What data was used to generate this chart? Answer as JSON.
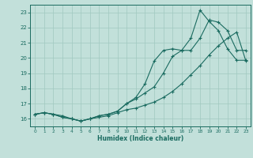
{
  "xlabel": "Humidex (Indice chaleur)",
  "bg_color": "#c2e0da",
  "grid_color": "#a0c8c0",
  "line_color": "#1a6b60",
  "xlim": [
    -0.5,
    23.5
  ],
  "ylim": [
    15.5,
    23.5
  ],
  "xticks": [
    0,
    1,
    2,
    3,
    4,
    5,
    6,
    7,
    8,
    9,
    10,
    11,
    12,
    13,
    14,
    15,
    16,
    17,
    18,
    19,
    20,
    21,
    22,
    23
  ],
  "yticks": [
    16,
    17,
    18,
    19,
    20,
    21,
    22,
    23
  ],
  "line1_x": [
    0,
    1,
    2,
    3,
    4,
    5,
    6,
    7,
    8,
    9,
    10,
    11,
    12,
    13,
    14,
    15,
    16,
    17,
    18,
    19,
    20,
    21,
    22,
    23
  ],
  "line1_y": [
    16.3,
    16.4,
    16.3,
    16.2,
    16.0,
    15.85,
    16.0,
    16.1,
    16.2,
    16.4,
    16.6,
    16.7,
    16.9,
    17.1,
    17.4,
    17.8,
    18.3,
    18.9,
    19.5,
    20.2,
    20.8,
    21.3,
    21.7,
    19.8
  ],
  "line2_x": [
    0,
    1,
    2,
    3,
    4,
    5,
    6,
    7,
    8,
    9,
    10,
    11,
    12,
    13,
    14,
    15,
    16,
    17,
    18,
    19,
    20,
    21,
    22,
    23
  ],
  "line2_y": [
    16.3,
    16.4,
    16.3,
    16.1,
    16.0,
    15.85,
    16.0,
    16.2,
    16.3,
    16.5,
    17.0,
    17.3,
    17.7,
    18.1,
    19.0,
    20.1,
    20.5,
    20.5,
    21.3,
    22.5,
    22.35,
    21.8,
    20.5,
    20.5
  ],
  "line3_x": [
    0,
    1,
    2,
    3,
    4,
    5,
    6,
    7,
    8,
    9,
    10,
    11,
    12,
    13,
    14,
    15,
    16,
    17,
    18,
    19,
    20,
    21,
    22,
    23
  ],
  "line3_y": [
    16.3,
    16.4,
    16.3,
    16.1,
    16.0,
    15.85,
    16.0,
    16.2,
    16.3,
    16.5,
    17.0,
    17.4,
    18.3,
    19.8,
    20.5,
    20.6,
    20.5,
    21.3,
    23.15,
    22.4,
    21.8,
    20.6,
    19.85,
    19.85
  ]
}
